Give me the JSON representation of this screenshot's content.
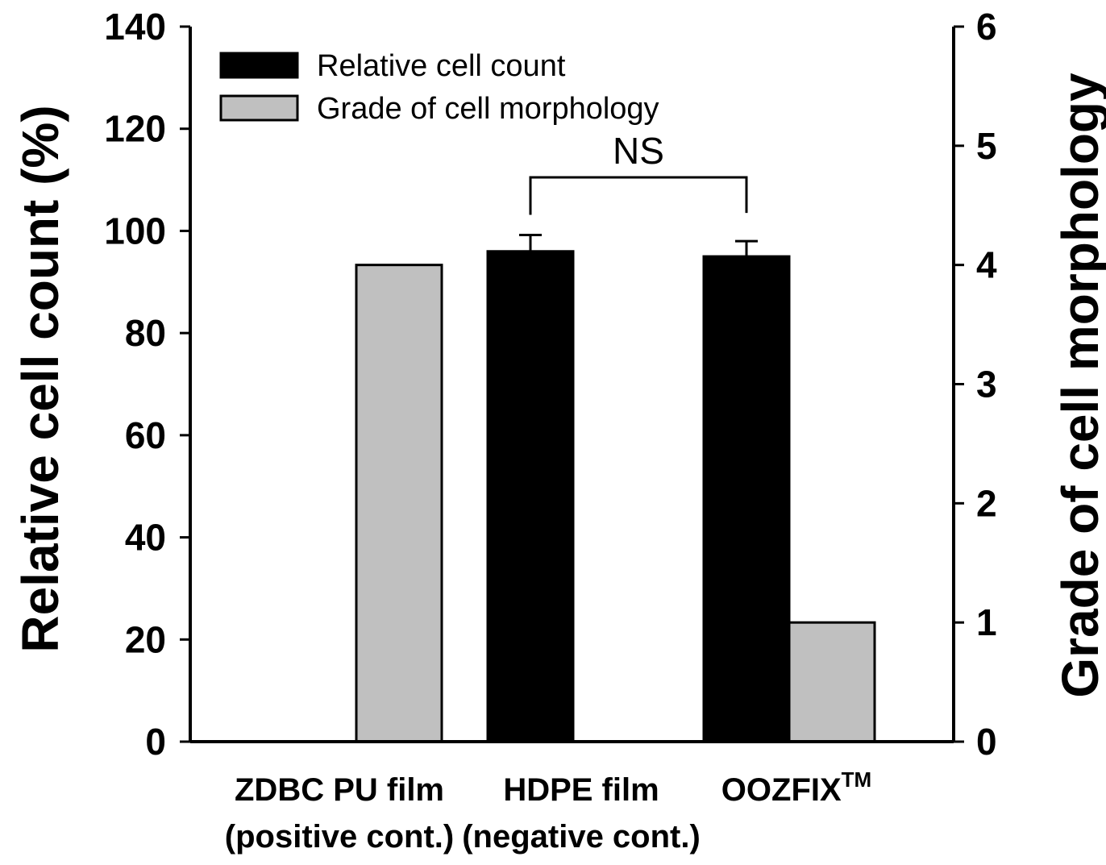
{
  "chart_data": {
    "type": "bar",
    "categories": [
      {
        "line1": "ZDBC PU film",
        "line2": "(positive cont.)"
      },
      {
        "line1": "HDPE film",
        "line2": "(negative cont.)"
      },
      {
        "line1": "OOZFIX",
        "sup": "TM",
        "line2": ""
      }
    ],
    "series": [
      {
        "name": "Relative cell count",
        "axis": "left",
        "color": "#000000",
        "values": [
          0,
          96,
          95
        ],
        "errors": [
          0,
          3.2,
          3.0
        ]
      },
      {
        "name": "Grade of cell morphology",
        "axis": "right",
        "color": "#c0c0c0",
        "values": [
          4,
          null,
          1
        ],
        "errors": [
          0,
          0,
          0
        ]
      }
    ],
    "ylabel_left": "Relative cell count (%)",
    "ylabel_right": "Grade of cell morphology",
    "ylim_left": [
      0,
      140
    ],
    "ylim_right": [
      0,
      6
    ],
    "yticks_left": [
      "0",
      "20",
      "40",
      "60",
      "80",
      "100",
      "120",
      "140"
    ],
    "yticks_right": [
      "0",
      "1",
      "2",
      "3",
      "4",
      "5",
      "6"
    ],
    "annotation": {
      "text": "NS",
      "between": [
        1,
        2
      ]
    },
    "legend_position": "top-left"
  }
}
